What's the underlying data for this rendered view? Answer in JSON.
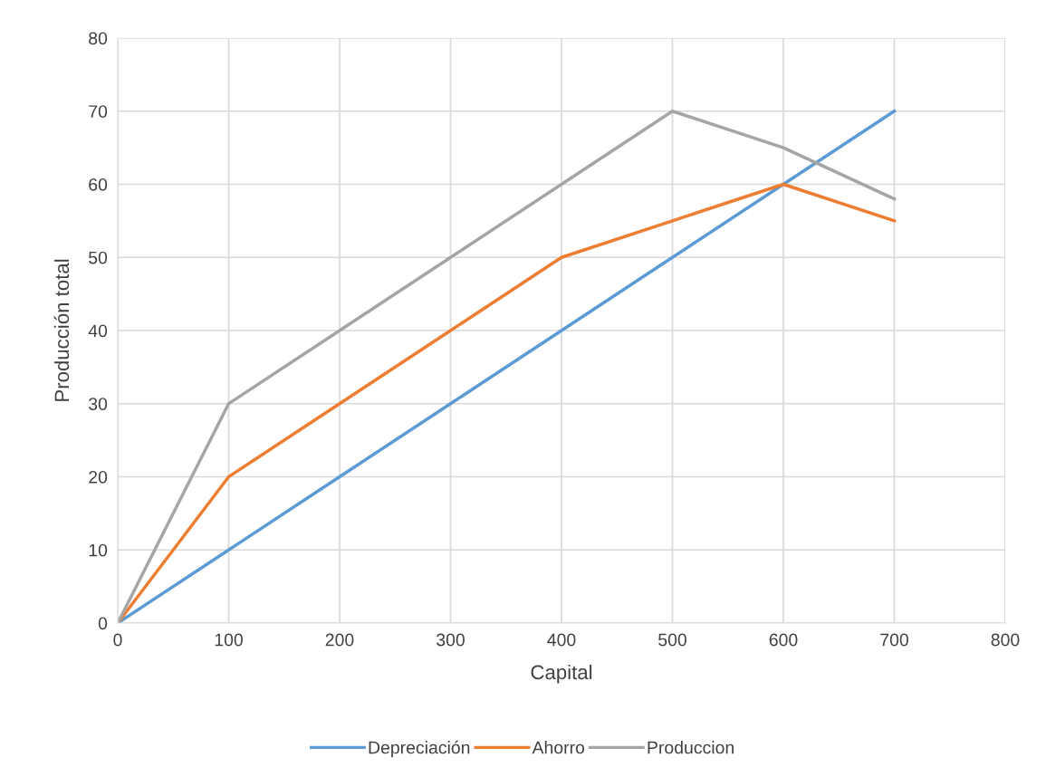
{
  "chart_data": {
    "type": "line",
    "xlabel": "Capital",
    "ylabel": "Producción total",
    "x": [
      0,
      100,
      200,
      300,
      400,
      500,
      600,
      700
    ],
    "series": [
      {
        "name": "Depreciación",
        "color": "#5b9bd5",
        "values": [
          0,
          10,
          20,
          30,
          40,
          50,
          60,
          70
        ]
      },
      {
        "name": "Ahorro",
        "color": "#ed7d31",
        "values": [
          0,
          20,
          30,
          40,
          50,
          55,
          60,
          55
        ]
      },
      {
        "name": "Produccion",
        "color": "#a5a5a5",
        "values": [
          0,
          30,
          40,
          50,
          60,
          70,
          65,
          58
        ]
      }
    ],
    "xlim": [
      0,
      800
    ],
    "xticks": [
      0,
      100,
      200,
      300,
      400,
      500,
      600,
      700,
      800
    ],
    "ylim": [
      0,
      80
    ],
    "yticks": [
      0,
      10,
      20,
      30,
      40,
      50,
      60,
      70,
      80
    ],
    "grid": true,
    "legend": "bottom",
    "marker": "none",
    "line_style": "solid"
  }
}
